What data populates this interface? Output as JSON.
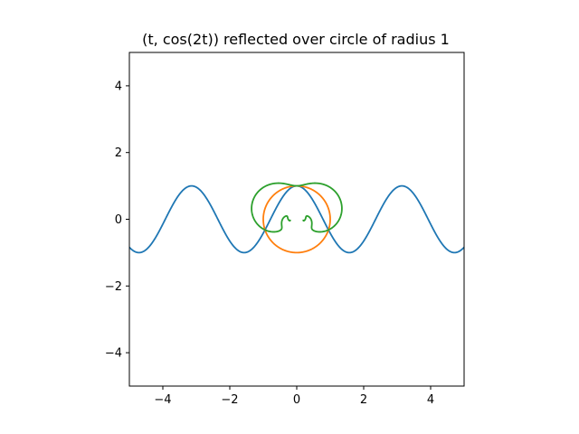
{
  "chart_data": {
    "type": "line",
    "title": "(t, cos(2t)) reflected over circle of radius 1",
    "xlabel": "",
    "ylabel": "",
    "xlim": [
      -5,
      5
    ],
    "ylim": [
      -5,
      5
    ],
    "xticks": [
      -4,
      -2,
      0,
      2,
      4
    ],
    "yticks": [
      -4,
      -2,
      0,
      2,
      4
    ],
    "grid": false,
    "legend": "none",
    "reflection_circle": {
      "center": [
        0,
        0
      ],
      "radius": 1
    },
    "series": [
      {
        "color": "#1f77b4",
        "x": [],
        "y": []
      },
      {
        "color": "#ff7f0e",
        "x": [],
        "y": []
      },
      {
        "color": "#2ca02c",
        "x": [],
        "y": []
      }
    ]
  }
}
